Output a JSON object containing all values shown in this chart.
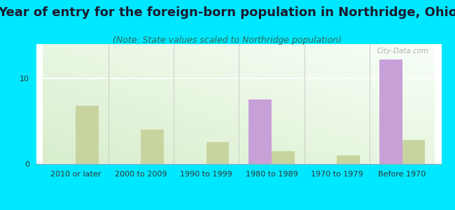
{
  "title": "Year of entry for the foreign-born population in Northridge, Ohio",
  "subtitle": "(Note: State values scaled to Northridge population)",
  "categories": [
    "2010 or later",
    "2000 to 2009",
    "1990 to 1999",
    "1980 to 1989",
    "1970 to 1979",
    "Before 1970"
  ],
  "northridge_values": [
    0,
    0,
    0,
    7.5,
    0,
    12.2
  ],
  "ohio_values": [
    6.8,
    4.0,
    2.5,
    1.5,
    1.0,
    2.8
  ],
  "northridge_color": "#c8a0d8",
  "ohio_color": "#c8d4a0",
  "background_outer": "#00e8ff",
  "ylim": [
    0,
    14
  ],
  "yticks": [
    0,
    10
  ],
  "bar_width": 0.35,
  "title_fontsize": 13,
  "subtitle_fontsize": 9,
  "tick_fontsize": 8,
  "legend_fontsize": 10
}
